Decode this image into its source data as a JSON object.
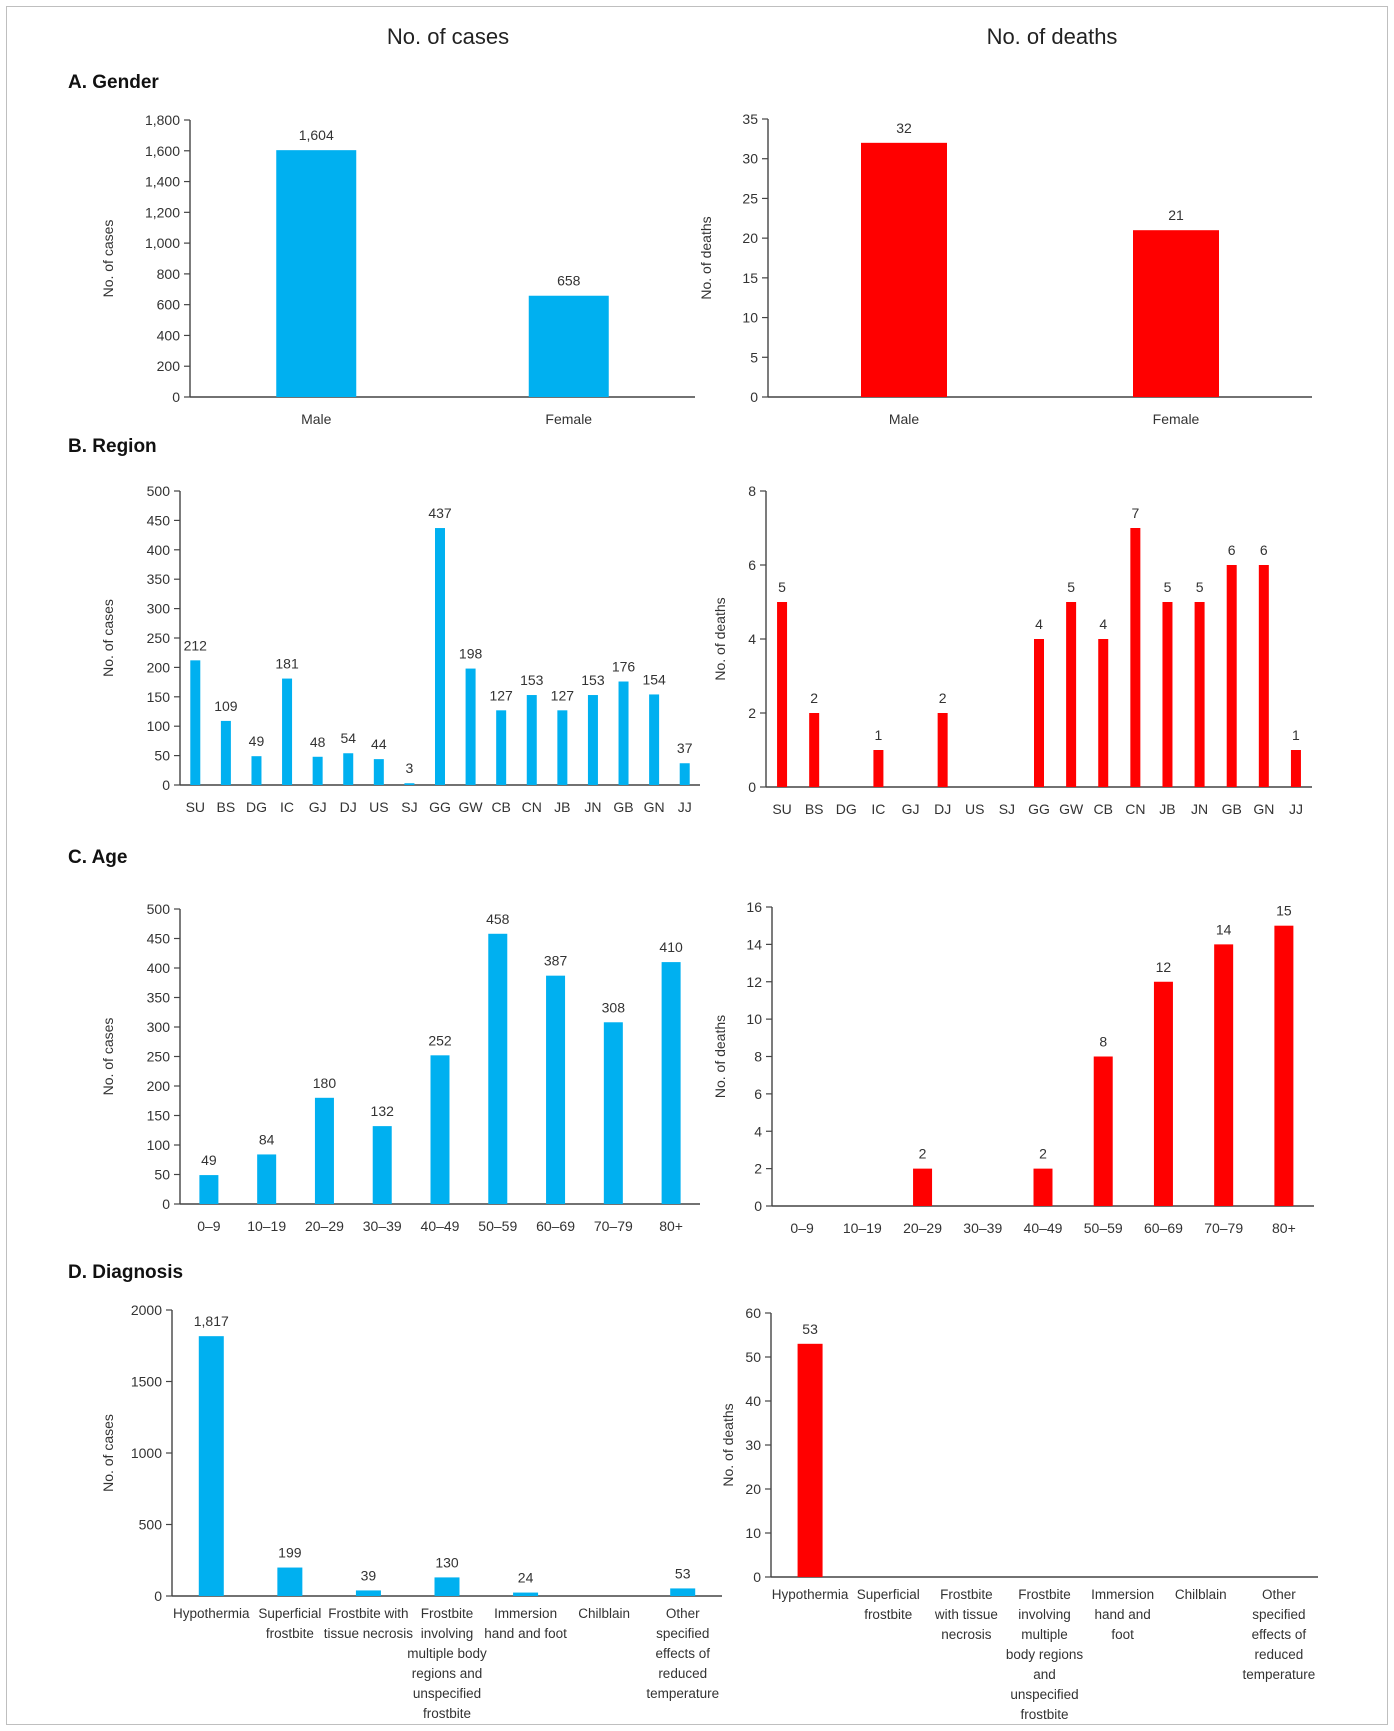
{
  "column_headers": {
    "left": "No. of cases",
    "right": "No. of deaths"
  },
  "sections": {
    "gender": "A. Gender",
    "region": "B. Region",
    "age": "C. Age",
    "diagnosis": "D. Diagnosis"
  },
  "colors": {
    "cases": "#00b0f0",
    "deaths": "#ff0000"
  },
  "chart_data": [
    {
      "id": "gender-cases",
      "type": "bar",
      "section": "A. Gender",
      "ylabel": "No. of cases",
      "xlabel": "",
      "categories": [
        "Male",
        "Female"
      ],
      "values": [
        1604,
        658
      ],
      "value_labels": [
        "1,604",
        "658"
      ],
      "ylim": [
        0,
        1800
      ],
      "yticks": [
        0,
        200,
        400,
        600,
        800,
        1000,
        1200,
        1400,
        1600,
        1800
      ],
      "ytick_labels": [
        "0",
        "200",
        "400",
        "600",
        "800",
        "1,000",
        "1,200",
        "1,400",
        "1,600",
        "1,800"
      ],
      "color": "#00b0f0",
      "grid": false
    },
    {
      "id": "gender-deaths",
      "type": "bar",
      "section": "A. Gender",
      "ylabel": "No. of deaths",
      "xlabel": "",
      "categories": [
        "Male",
        "Female"
      ],
      "values": [
        32,
        21
      ],
      "value_labels": [
        "32",
        "21"
      ],
      "ylim": [
        0,
        35
      ],
      "yticks": [
        0,
        5,
        10,
        15,
        20,
        25,
        30,
        35
      ],
      "ytick_labels": [
        "0",
        "5",
        "10",
        "15",
        "20",
        "25",
        "30",
        "35"
      ],
      "color": "#ff0000",
      "grid": false
    },
    {
      "id": "region-cases",
      "type": "bar",
      "section": "B. Region",
      "ylabel": "No. of cases",
      "xlabel": "",
      "categories": [
        "SU",
        "BS",
        "DG",
        "IC",
        "GJ",
        "DJ",
        "US",
        "SJ",
        "GG",
        "GW",
        "CB",
        "CN",
        "JB",
        "JN",
        "GB",
        "GN",
        "JJ"
      ],
      "values": [
        212,
        109,
        49,
        181,
        48,
        54,
        44,
        3,
        437,
        198,
        127,
        153,
        127,
        153,
        176,
        154,
        37
      ],
      "value_labels": [
        "212",
        "109",
        "49",
        "181",
        "48",
        "54",
        "44",
        "3",
        "437",
        "198",
        "127",
        "153",
        "127",
        "153",
        "176",
        "154",
        "37"
      ],
      "ylim": [
        0,
        500
      ],
      "yticks": [
        0,
        50,
        100,
        150,
        200,
        250,
        300,
        350,
        400,
        450,
        500
      ],
      "ytick_labels": [
        "0",
        "50",
        "100",
        "150",
        "200",
        "250",
        "300",
        "350",
        "400",
        "450",
        "500"
      ],
      "color": "#00b0f0",
      "grid": false
    },
    {
      "id": "region-deaths",
      "type": "bar",
      "section": "B. Region",
      "ylabel": "No. of deaths",
      "xlabel": "",
      "categories": [
        "SU",
        "BS",
        "DG",
        "IC",
        "GJ",
        "DJ",
        "US",
        "SJ",
        "GG",
        "GW",
        "CB",
        "CN",
        "JB",
        "JN",
        "GB",
        "GN",
        "JJ"
      ],
      "values": [
        5,
        2,
        0,
        1,
        0,
        2,
        0,
        0,
        4,
        5,
        4,
        7,
        5,
        5,
        6,
        6,
        1
      ],
      "value_labels": [
        "5",
        "2",
        "",
        "1",
        "",
        "2",
        "",
        "",
        "4",
        "5",
        "4",
        "7",
        "5",
        "5",
        "6",
        "6",
        "1"
      ],
      "ylim": [
        0,
        8
      ],
      "yticks": [
        0,
        2,
        4,
        6,
        8
      ],
      "ytick_labels": [
        "0",
        "2",
        "4",
        "6",
        "8"
      ],
      "color": "#ff0000",
      "grid": false
    },
    {
      "id": "age-cases",
      "type": "bar",
      "section": "C. Age",
      "ylabel": "No. of cases",
      "xlabel": "",
      "categories": [
        "0–9",
        "10–19",
        "20–29",
        "30–39",
        "40–49",
        "50–59",
        "60–69",
        "70–79",
        "80+"
      ],
      "values": [
        49,
        84,
        180,
        132,
        252,
        458,
        387,
        308,
        410
      ],
      "value_labels": [
        "49",
        "84",
        "180",
        "132",
        "252",
        "458",
        "387",
        "308",
        "410"
      ],
      "ylim": [
        0,
        500
      ],
      "yticks": [
        0,
        50,
        100,
        150,
        200,
        250,
        300,
        350,
        400,
        450,
        500
      ],
      "ytick_labels": [
        "0",
        "50",
        "100",
        "150",
        "200",
        "250",
        "300",
        "350",
        "400",
        "450",
        "500"
      ],
      "color": "#00b0f0",
      "grid": false
    },
    {
      "id": "age-deaths",
      "type": "bar",
      "section": "C. Age",
      "ylabel": "No. of deaths",
      "xlabel": "",
      "categories": [
        "0–9",
        "10–19",
        "20–29",
        "30–39",
        "40–49",
        "50–59",
        "60–69",
        "70–79",
        "80+"
      ],
      "values": [
        0,
        0,
        2,
        0,
        2,
        8,
        12,
        14,
        15
      ],
      "value_labels": [
        "",
        "",
        "2",
        "",
        "2",
        "8",
        "12",
        "14",
        "15"
      ],
      "ylim": [
        0,
        16
      ],
      "yticks": [
        0,
        2,
        4,
        6,
        8,
        10,
        12,
        14,
        16
      ],
      "ytick_labels": [
        "0",
        "2",
        "4",
        "6",
        "8",
        "10",
        "12",
        "14",
        "16"
      ],
      "color": "#ff0000",
      "grid": false
    },
    {
      "id": "diagnosis-cases",
      "type": "bar",
      "section": "D. Diagnosis",
      "ylabel": "No. of cases",
      "xlabel": "",
      "categories": [
        "Hypothermia",
        "Superficial frostbite",
        "Frostbite with tissue necrosis",
        "Frostbite involving multiple body regions and unspecified frostbite",
        "Immersion hand and foot",
        "Chilblain",
        "Other specified effects of reduced temperature"
      ],
      "category_lines": [
        [
          "Hypothermia"
        ],
        [
          "Superficial",
          "frostbite"
        ],
        [
          "Frostbite with",
          "tissue necrosis"
        ],
        [
          "Frostbite",
          "involving",
          "multiple body",
          "regions and",
          "unspecified",
          "frostbite"
        ],
        [
          "Immersion",
          "hand and foot"
        ],
        [
          "Chilblain"
        ],
        [
          "Other",
          "specified",
          "effects of",
          "reduced",
          "temperature"
        ]
      ],
      "values": [
        1817,
        199,
        39,
        130,
        24,
        0,
        53
      ],
      "value_labels": [
        "1,817",
        "199",
        "39",
        "130",
        "24",
        "",
        "53"
      ],
      "ylim": [
        0,
        2000
      ],
      "yticks": [
        0,
        500,
        1000,
        1500,
        2000
      ],
      "ytick_labels": [
        "0",
        "500",
        "1000",
        "1500",
        "2000"
      ],
      "color": "#00b0f0",
      "grid": false
    },
    {
      "id": "diagnosis-deaths",
      "type": "bar",
      "section": "D. Diagnosis",
      "ylabel": "No. of deaths",
      "xlabel": "",
      "categories": [
        "Hypothermia",
        "Superficial frostbite",
        "Frostbite with tissue necrosis",
        "Frostbite involving multiple body regions and unspecified frostbite",
        "Immersion hand and foot",
        "Chilblain",
        "Other specified effects of reduced temperature"
      ],
      "category_lines": [
        [
          "Hypothermia"
        ],
        [
          "Superficial",
          "frostbite"
        ],
        [
          "Frostbite",
          "with tissue",
          "necrosis"
        ],
        [
          "Frostbite",
          "involving",
          "multiple",
          "body regions",
          "and",
          "unspecified",
          "frostbite"
        ],
        [
          "Immersion",
          "hand and",
          "foot"
        ],
        [
          "Chilblain"
        ],
        [
          "Other",
          "specified",
          "effects of",
          "reduced",
          "temperature"
        ]
      ],
      "values": [
        53,
        0,
        0,
        0,
        0,
        0,
        0
      ],
      "value_labels": [
        "53",
        "",
        "",
        "",
        "",
        "",
        ""
      ],
      "ylim": [
        0,
        60
      ],
      "yticks": [
        0,
        10,
        20,
        30,
        40,
        50,
        60
      ],
      "ytick_labels": [
        "0",
        "10",
        "20",
        "30",
        "40",
        "50",
        "60"
      ],
      "color": "#ff0000",
      "grid": false
    }
  ]
}
